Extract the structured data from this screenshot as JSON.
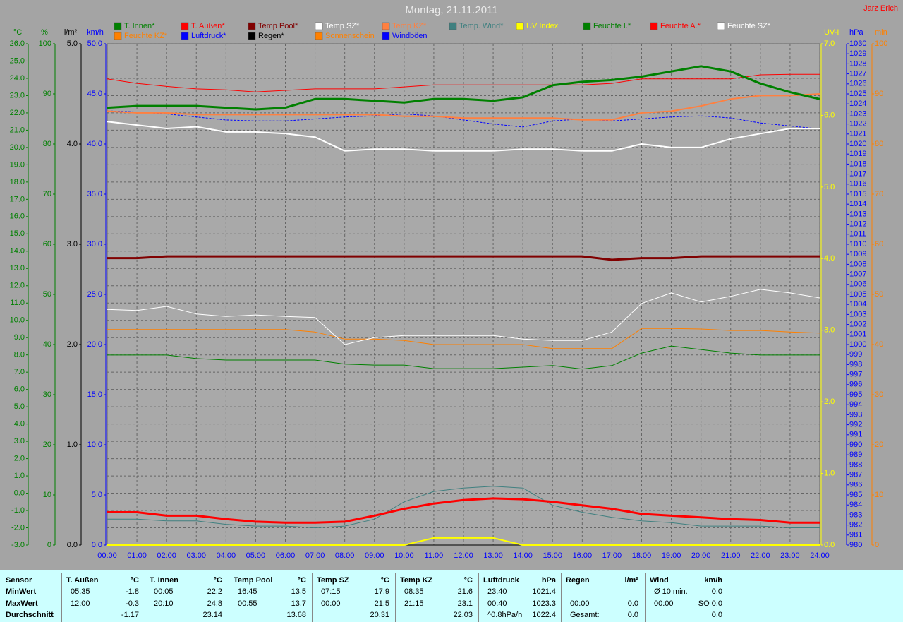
{
  "chart_data": {
    "type": "line",
    "title": "Montag, 21.11.2011",
    "annotation": "Jarz Erich",
    "grid": true,
    "categories": [
      "00:00",
      "01:00",
      "02:00",
      "03:00",
      "04:00",
      "05:00",
      "06:00",
      "07:00",
      "08:00",
      "09:00",
      "10:00",
      "11:00",
      "12:00",
      "13:00",
      "14:00",
      "15:00",
      "16:00",
      "17:00",
      "18:00",
      "19:00",
      "20:00",
      "21:00",
      "22:00",
      "23:00",
      "24:00"
    ],
    "axes": [
      {
        "id": "y",
        "label": "°C",
        "color": "#008000",
        "lim": [
          -3,
          26
        ],
        "ticks": [
          {
            "value": -3,
            "label": "-3.0"
          },
          {
            "value": -2,
            "label": "-2.0"
          },
          {
            "value": -1,
            "label": "-1.0"
          },
          {
            "value": 0,
            "label": "0.0"
          },
          {
            "value": 1,
            "label": "1.0"
          },
          {
            "value": 2,
            "label": "2.0"
          },
          {
            "value": 3,
            "label": "3.0"
          },
          {
            "value": 4,
            "label": "4.0"
          },
          {
            "value": 5,
            "label": "5.0"
          },
          {
            "value": 6,
            "label": "6.0"
          },
          {
            "value": 7,
            "label": "7.0"
          },
          {
            "value": 8,
            "label": "8.0"
          },
          {
            "value": 9,
            "label": "9.0"
          },
          {
            "value": 10,
            "label": "10.0"
          },
          {
            "value": 11,
            "label": "11.0"
          },
          {
            "value": 12,
            "label": "12.0"
          },
          {
            "value": 13,
            "label": "13.0"
          },
          {
            "value": 14,
            "label": "14.0"
          },
          {
            "value": 15,
            "label": "15.0"
          },
          {
            "value": 16,
            "label": "16.0"
          },
          {
            "value": 17,
            "label": "17.0"
          },
          {
            "value": 18,
            "label": "18.0"
          },
          {
            "value": 19,
            "label": "19.0"
          },
          {
            "value": 20,
            "label": "20.0"
          },
          {
            "value": 21,
            "label": "21.0"
          },
          {
            "value": 22,
            "label": "22.0"
          },
          {
            "value": 23,
            "label": "23.0"
          },
          {
            "value": 24,
            "label": "24.0"
          },
          {
            "value": 25,
            "label": "25.0"
          },
          {
            "value": 26,
            "label": "26.0"
          }
        ]
      },
      {
        "id": "y2",
        "label": "%",
        "color": "#008000",
        "lim": [
          0,
          100
        ],
        "ticks": [
          0,
          10,
          20,
          30,
          40,
          50,
          60,
          70,
          80,
          90,
          100
        ]
      },
      {
        "id": "y3",
        "label": "l/m²",
        "color": "#000000",
        "lim": [
          0,
          5
        ],
        "ticks": [
          {
            "value": 0,
            "label": "0.0"
          },
          {
            "value": 1,
            "label": "1.0"
          },
          {
            "value": 2,
            "label": "2.0"
          },
          {
            "value": 3,
            "label": "3.0"
          },
          {
            "value": 4,
            "label": "4.0"
          },
          {
            "value": 5,
            "label": "5.0"
          }
        ]
      },
      {
        "id": "y4",
        "label": "km/h",
        "color": "#0000ff",
        "lim": [
          0,
          50
        ],
        "ticks": [
          {
            "value": 0,
            "label": "0.0"
          },
          {
            "value": 5,
            "label": "5.0"
          },
          {
            "value": 10,
            "label": "10.0"
          },
          {
            "value": 15,
            "label": "15.0"
          },
          {
            "value": 20,
            "label": "20.0"
          },
          {
            "value": 25,
            "label": "25.0"
          },
          {
            "value": 30,
            "label": "30.0"
          },
          {
            "value": 35,
            "label": "35.0"
          },
          {
            "value": 40,
            "label": "40.0"
          },
          {
            "value": 45,
            "label": "45.0"
          },
          {
            "value": 50,
            "label": "50.0"
          }
        ]
      },
      {
        "id": "y5",
        "label": "UV-I",
        "color": "#ffff00",
        "lim": [
          0,
          7
        ],
        "ticks": [
          {
            "value": 0,
            "label": "0.0"
          },
          {
            "value": 1,
            "label": "1.0"
          },
          {
            "value": 2,
            "label": "2.0"
          },
          {
            "value": 3,
            "label": "3.0"
          },
          {
            "value": 4,
            "label": "4.0"
          },
          {
            "value": 5,
            "label": "5.0"
          },
          {
            "value": 6,
            "label": "6.0"
          },
          {
            "value": 7,
            "label": "7.0"
          }
        ]
      },
      {
        "id": "y6",
        "label": "hPa",
        "color": "#0000ff",
        "lim": [
          980,
          1030
        ],
        "ticks": [
          980,
          981,
          982,
          983,
          984,
          985,
          986,
          987,
          988,
          989,
          990,
          991,
          992,
          993,
          994,
          995,
          996,
          997,
          998,
          999,
          1000,
          1001,
          1002,
          1003,
          1004,
          1005,
          1006,
          1007,
          1008,
          1009,
          1010,
          1011,
          1012,
          1013,
          1014,
          1015,
          1016,
          1017,
          1018,
          1019,
          1020,
          1021,
          1022,
          1023,
          1024,
          1025,
          1026,
          1027,
          1028,
          1029,
          1030
        ]
      },
      {
        "id": "y7",
        "label": "min",
        "color": "#ff8000",
        "lim": [
          0,
          100
        ],
        "ticks": [
          0,
          10,
          20,
          30,
          40,
          50,
          60,
          70,
          80,
          90,
          100
        ]
      }
    ],
    "series": [
      {
        "name": "T. Innen*",
        "color": "#008000",
        "axis": "y",
        "width": 3,
        "values": [
          22.3,
          22.4,
          22.4,
          22.4,
          22.3,
          22.2,
          22.3,
          22.8,
          22.8,
          22.7,
          22.6,
          22.8,
          22.8,
          22.7,
          22.9,
          23.6,
          23.8,
          23.9,
          24.1,
          24.4,
          24.7,
          24.4,
          23.7,
          23.2,
          22.8
        ]
      },
      {
        "name": "T. Außen*",
        "color": "#ff0000",
        "axis": "y",
        "width": 3,
        "values": [
          -1.1,
          -1.1,
          -1.3,
          -1.3,
          -1.5,
          -1.65,
          -1.7,
          -1.7,
          -1.65,
          -1.3,
          -0.9,
          -0.6,
          -0.4,
          -0.3,
          -0.35,
          -0.5,
          -0.7,
          -0.9,
          -1.2,
          -1.3,
          -1.4,
          -1.5,
          -1.55,
          -1.7,
          -1.7
        ]
      },
      {
        "name": "Temp Pool*",
        "color": "#800000",
        "axis": "y",
        "width": 3,
        "values": [
          13.6,
          13.6,
          13.7,
          13.7,
          13.7,
          13.7,
          13.7,
          13.7,
          13.7,
          13.7,
          13.7,
          13.7,
          13.7,
          13.7,
          13.7,
          13.7,
          13.7,
          13.5,
          13.6,
          13.6,
          13.7,
          13.7,
          13.7,
          13.7,
          13.7
        ]
      },
      {
        "name": "Temp SZ*",
        "color": "#ffffff",
        "axis": "y",
        "width": 2,
        "values": [
          21.5,
          21.3,
          21.1,
          21.2,
          20.9,
          20.9,
          20.8,
          20.6,
          19.8,
          19.9,
          19.9,
          19.8,
          19.8,
          19.8,
          19.9,
          19.9,
          19.8,
          19.8,
          20.2,
          20.0,
          20.0,
          20.5,
          20.8,
          21.1,
          21.1
        ]
      },
      {
        "name": "Temp KZ*",
        "color": "#ff8040",
        "axis": "y",
        "width": 2,
        "values": [
          22.1,
          22.0,
          22.0,
          21.9,
          21.9,
          21.9,
          21.9,
          21.9,
          21.9,
          21.9,
          21.8,
          21.8,
          21.7,
          21.7,
          21.7,
          21.7,
          21.6,
          21.6,
          22.0,
          22.1,
          22.4,
          22.8,
          23.0,
          23.0,
          23.1
        ]
      },
      {
        "name": "Temp. Wind*",
        "color": "#408080",
        "axis": "y",
        "width": 1,
        "values": [
          -1.5,
          -1.5,
          -1.6,
          -1.6,
          -1.8,
          -1.9,
          -1.9,
          -2.0,
          -1.9,
          -1.5,
          -0.5,
          0.1,
          0.3,
          0.4,
          0.3,
          -0.7,
          -1.1,
          -1.4,
          -1.6,
          -1.7,
          -1.9,
          -1.9,
          -1.9,
          -2.0,
          -2.0
        ]
      },
      {
        "name": "UV Index",
        "color": "#ffff00",
        "axis": "y5",
        "width": 2,
        "values": [
          0,
          0,
          0,
          0,
          0,
          0,
          0,
          0,
          0,
          0,
          0,
          0.1,
          0.1,
          0.1,
          0,
          0,
          0,
          0,
          0,
          0,
          0,
          0,
          0,
          0,
          0
        ]
      },
      {
        "name": "Feuchte I.*",
        "color": "#008000",
        "axis": "y2",
        "width": 1,
        "values": [
          37.9,
          37.9,
          37.9,
          37.2,
          36.9,
          36.9,
          36.9,
          36.9,
          36.1,
          35.9,
          35.9,
          35.2,
          35.2,
          35.2,
          35.5,
          35.8,
          35.1,
          35.8,
          38.3,
          39.7,
          39.0,
          38.3,
          37.9,
          37.9,
          37.9
        ]
      },
      {
        "name": "Feuchte A.*",
        "color": "#ff0000",
        "axis": "y2",
        "width": 1,
        "values": [
          93.0,
          92.1,
          91.5,
          91.0,
          90.8,
          90.4,
          90.7,
          91.0,
          91.0,
          91.0,
          91.4,
          91.8,
          91.8,
          91.8,
          91.8,
          91.8,
          91.8,
          92.1,
          93.0,
          93.0,
          93.0,
          93.0,
          93.8,
          93.9,
          93.9
        ]
      },
      {
        "name": "Feuchte SZ*",
        "color": "#ffffff",
        "axis": "y2",
        "width": 1,
        "values": [
          47.0,
          46.8,
          47.6,
          46.1,
          45.6,
          45.9,
          45.6,
          45.4,
          40.0,
          41.4,
          41.8,
          41.8,
          41.8,
          41.8,
          41.1,
          40.8,
          40.8,
          42.5,
          48.2,
          50.3,
          48.5,
          49.6,
          51.0,
          50.3,
          49.3
        ]
      },
      {
        "name": "Feuchte KZ*",
        "color": "#ff8000",
        "axis": "y2",
        "width": 1,
        "values": [
          43.0,
          43.0,
          43.0,
          43.0,
          43.0,
          43.0,
          43.0,
          42.5,
          41.1,
          41.1,
          40.8,
          40.0,
          40.0,
          40.0,
          40.0,
          39.2,
          39.2,
          39.2,
          43.2,
          43.2,
          43.1,
          42.8,
          42.8,
          42.5,
          42.3
        ]
      },
      {
        "name": "Luftdruck*",
        "color": "#0000ff",
        "axis": "y6",
        "width": 1,
        "dash": true,
        "values": [
          1023.3,
          1023.2,
          1023.0,
          1022.7,
          1022.4,
          1022.3,
          1022.3,
          1022.5,
          1022.7,
          1022.8,
          1023.0,
          1022.8,
          1022.4,
          1022.0,
          1021.7,
          1022.3,
          1022.5,
          1022.3,
          1022.5,
          1022.7,
          1022.8,
          1022.6,
          1022.1,
          1021.8,
          1021.5
        ]
      },
      {
        "name": "Regen*",
        "color": "#000000",
        "axis": "y3",
        "width": 1,
        "values": [
          0,
          0,
          0,
          0,
          0,
          0,
          0,
          0,
          0,
          0,
          0,
          0,
          0,
          0,
          0,
          0,
          0,
          0,
          0,
          0,
          0,
          0,
          0,
          0,
          0
        ]
      },
      {
        "name": "Sonnenschein",
        "color": "#ff8000",
        "axis": "y7",
        "width": 1,
        "values": [
          0,
          0,
          0,
          0,
          0,
          0,
          0,
          0,
          0,
          0,
          0,
          0,
          0,
          0,
          0,
          0,
          0,
          0,
          0,
          0,
          0,
          0,
          0,
          0,
          0
        ]
      },
      {
        "name": "Windböen",
        "color": "#0000ff",
        "axis": "y4",
        "width": 1,
        "values": [
          0,
          0,
          0,
          0,
          0,
          0,
          0,
          0,
          0,
          0,
          0,
          0,
          0,
          0,
          0,
          0,
          0,
          0,
          0,
          0,
          0,
          0,
          0,
          0,
          0
        ]
      }
    ]
  },
  "table": {
    "row_labels": [
      "Sensor",
      "MinWert",
      "MaxWert",
      "Durchschnitt"
    ],
    "columns": [
      {
        "header": [
          "T. Außen",
          "°C"
        ],
        "cells": [
          [
            "05:35",
            "-1.8"
          ],
          [
            "12:00",
            "-0.3"
          ],
          [
            null,
            "-1.17"
          ]
        ]
      },
      {
        "header": [
          "T. Innen",
          "°C"
        ],
        "cells": [
          [
            "00:05",
            "22.2"
          ],
          [
            "20:10",
            "24.8"
          ],
          [
            null,
            "23.14"
          ]
        ]
      },
      {
        "header": [
          "Temp Pool",
          "°C"
        ],
        "cells": [
          [
            "16:45",
            "13.5"
          ],
          [
            "00:55",
            "13.7"
          ],
          [
            null,
            "13.68"
          ]
        ]
      },
      {
        "header": [
          "Temp SZ",
          "°C"
        ],
        "cells": [
          [
            "07:15",
            "17.9"
          ],
          [
            "00:00",
            "21.5"
          ],
          [
            null,
            "20.31"
          ]
        ]
      },
      {
        "header": [
          "Temp KZ",
          "°C"
        ],
        "cells": [
          [
            "08:35",
            "21.6"
          ],
          [
            "21:15",
            "23.1"
          ],
          [
            null,
            "22.03"
          ]
        ]
      },
      {
        "header": [
          "Luftdruck",
          "hPa"
        ],
        "cells": [
          [
            "23:40",
            "1021.4"
          ],
          [
            "00:40",
            "1023.3"
          ],
          [
            "^0.8hPa/h",
            "1022.4"
          ]
        ]
      },
      {
        "header": [
          "Regen",
          "l/m²"
        ],
        "cells": [
          [
            null,
            null
          ],
          [
            "00:00",
            "0.0"
          ],
          [
            "Gesamt:",
            "0.0"
          ]
        ]
      },
      {
        "header": [
          "Wind",
          "km/h"
        ],
        "cells": [
          [
            "Ø 10 min.",
            "0.0"
          ],
          [
            "00:00",
            "SO 0.0"
          ],
          [
            null,
            "0.0"
          ]
        ]
      }
    ]
  }
}
